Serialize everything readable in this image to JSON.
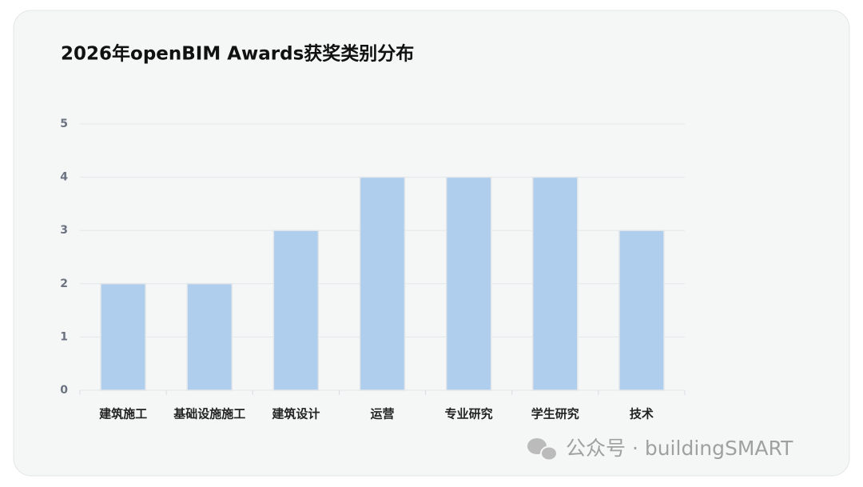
{
  "chart_data": {
    "type": "bar",
    "title": "2026年openBIM Awards获奖类别分布",
    "categories": [
      "建筑施工",
      "基础设施施工",
      "建筑设计",
      "运营",
      "专业研究",
      "学生研究",
      "技术"
    ],
    "values": [
      2,
      2,
      3,
      4,
      4,
      4,
      3
    ],
    "color": "#afcdec",
    "ylim": [
      0,
      5
    ],
    "yticks": [
      0,
      1,
      2,
      3,
      4,
      5
    ],
    "grid": true
  },
  "watermark": "公众号 · buildingSMART"
}
